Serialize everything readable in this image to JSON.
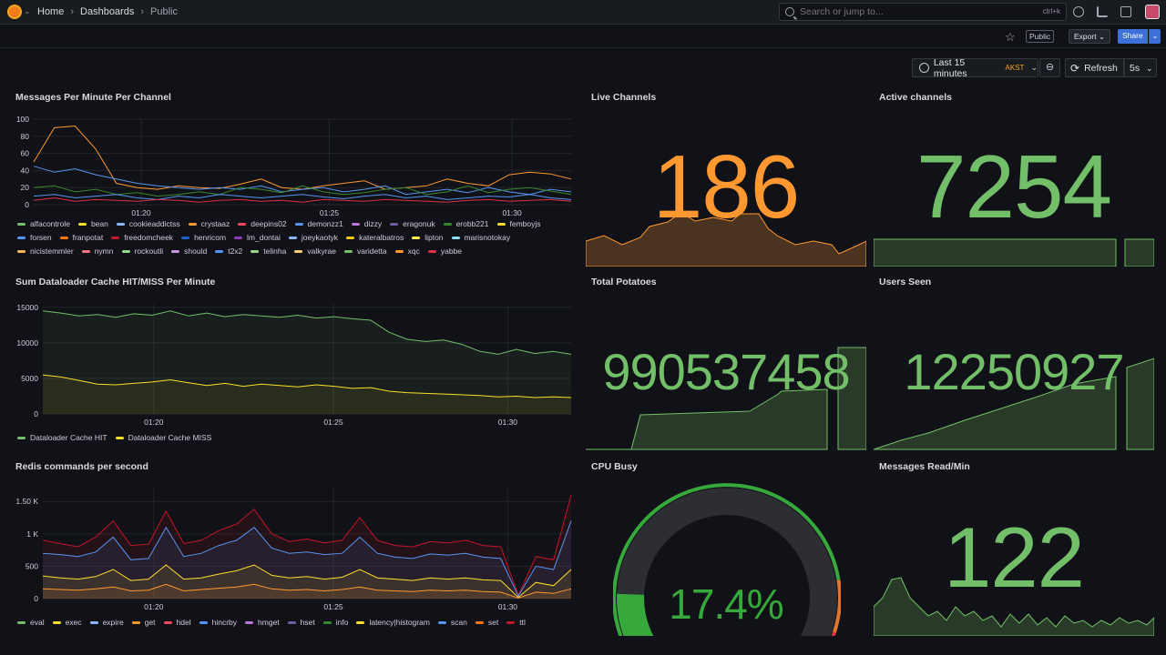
{
  "topbar": {
    "breadcrumbs": [
      "Home",
      "Dashboards",
      "Public"
    ],
    "search_placeholder": "Search or jump to...",
    "search_shortcut": "ctrl+k"
  },
  "toolbar": {
    "public_badge": "Public",
    "export_label": "Export",
    "share_label": "Share"
  },
  "controls": {
    "time_range": "Last 15 minutes",
    "timezone": "AKST",
    "refresh_label": "Refresh",
    "refresh_interval": "5s"
  },
  "colors": {
    "orange": "#ff9830",
    "green": "#73bf69",
    "stat_green_fill": "#2a3a28",
    "stat_orange_fill": "#4a3320"
  },
  "panels": {
    "messages_per_minute": {
      "title": "Messages Per Minute Per Channel",
      "legend": [
        {
          "name": "alfacontrole",
          "color": "#73bf69"
        },
        {
          "name": "bean",
          "color": "#fade2a"
        },
        {
          "name": "cookieaddictss",
          "color": "#8ab8ff"
        },
        {
          "name": "crystaaz",
          "color": "#ff9830"
        },
        {
          "name": "deepins02",
          "color": "#f2495c"
        },
        {
          "name": "demonzz1",
          "color": "#5794f2"
        },
        {
          "name": "dizzy",
          "color": "#b877d9"
        },
        {
          "name": "eragonuk",
          "color": "#705da0"
        },
        {
          "name": "erobb221",
          "color": "#37872d"
        },
        {
          "name": "femboyjs",
          "color": "#fade2a"
        },
        {
          "name": "forsen",
          "color": "#5794f2"
        },
        {
          "name": "franpotat",
          "color": "#ff780a"
        },
        {
          "name": "freedomcheek",
          "color": "#c4162a"
        },
        {
          "name": "henricom",
          "color": "#1f60c4"
        },
        {
          "name": "lm_dontai",
          "color": "#8f3bb8"
        },
        {
          "name": "joeykaotyk",
          "color": "#8ab8ff"
        },
        {
          "name": "kateralbatros",
          "color": "#f2cc0c"
        },
        {
          "name": "lipton",
          "color": "#ffee52"
        },
        {
          "name": "marisnotokay",
          "color": "#8ae1fc"
        },
        {
          "name": "nicistemmler",
          "color": "#ffb357"
        },
        {
          "name": "nymn",
          "color": "#ff7383"
        },
        {
          "name": "rockoutli",
          "color": "#96d98d"
        },
        {
          "name": "should",
          "color": "#ca95e5"
        },
        {
          "name": "t2x2",
          "color": "#5794f2"
        },
        {
          "name": "telinha",
          "color": "#96d98d"
        },
        {
          "name": "valkyrae",
          "color": "#ffcb7d"
        },
        {
          "name": "varidetta",
          "color": "#73bf69"
        },
        {
          "name": "xqc",
          "color": "#ff9830"
        },
        {
          "name": "yabbe",
          "color": "#e02f44"
        }
      ]
    },
    "cache": {
      "title": "Sum Dataloader Cache HIT/MISS Per Minute",
      "legend": [
        {
          "name": "Dataloader Cache HIT",
          "color": "#73bf69"
        },
        {
          "name": "Dataloader Cache MISS",
          "color": "#fade2a"
        }
      ]
    },
    "redis": {
      "title": "Redis commands per second",
      "legend": [
        {
          "name": "eval",
          "color": "#73bf69"
        },
        {
          "name": "exec",
          "color": "#fade2a"
        },
        {
          "name": "expire",
          "color": "#8ab8ff"
        },
        {
          "name": "get",
          "color": "#ff9830"
        },
        {
          "name": "hdel",
          "color": "#f2495c"
        },
        {
          "name": "hincrby",
          "color": "#5794f2"
        },
        {
          "name": "hmget",
          "color": "#b877d9"
        },
        {
          "name": "hset",
          "color": "#705da0"
        },
        {
          "name": "info",
          "color": "#37872d"
        },
        {
          "name": "latency|histogram",
          "color": "#fade2a"
        },
        {
          "name": "scan",
          "color": "#5794f2"
        },
        {
          "name": "set",
          "color": "#ff780a"
        },
        {
          "name": "ttl",
          "color": "#c4162a"
        }
      ]
    },
    "live_channels": {
      "title": "Live Channels",
      "value": "186"
    },
    "active_channels": {
      "title": "Active channels",
      "value": "7254"
    },
    "total_potatoes": {
      "title": "Total Potatoes",
      "value": "990537458"
    },
    "users_seen": {
      "title": "Users Seen",
      "value": "12250927"
    },
    "cpu_busy": {
      "title": "CPU Busy",
      "value": "17.4%",
      "fraction": 0.174
    },
    "messages_read": {
      "title": "Messages Read/Min",
      "value": "122"
    }
  },
  "chart_data": [
    {
      "type": "line",
      "title": "Messages Per Minute Per Channel",
      "x_ticks": [
        "01:20",
        "01:25",
        "01:30"
      ],
      "y_ticks": [
        "0",
        "20",
        "40",
        "60",
        "80",
        "100"
      ],
      "ylim": [
        0,
        100
      ],
      "series": [
        {
          "name": "crystaaz",
          "values": [
            50,
            90,
            92,
            65,
            25,
            20,
            18,
            22,
            20,
            19,
            24,
            30,
            20,
            18,
            22,
            25,
            28,
            18,
            20,
            22,
            30,
            25,
            22,
            35,
            38,
            36,
            30
          ]
        },
        {
          "name": "demonzz1",
          "values": [
            45,
            38,
            42,
            35,
            30,
            25,
            22,
            20,
            18,
            20,
            18,
            22,
            15,
            18,
            20,
            15,
            18,
            22,
            12,
            15,
            18,
            14,
            20,
            15,
            12,
            18,
            15
          ]
        },
        {
          "name": "erobb221",
          "values": [
            20,
            22,
            15,
            18,
            12,
            14,
            10,
            12,
            15,
            12,
            20,
            18,
            14,
            22,
            15,
            12,
            14,
            18,
            20,
            12,
            15,
            22,
            14,
            18,
            20,
            16,
            12
          ]
        },
        {
          "name": "forsen",
          "values": [
            10,
            12,
            8,
            10,
            12,
            8,
            6,
            10,
            8,
            12,
            10,
            8,
            10,
            12,
            9,
            7,
            10,
            12,
            8,
            10,
            6,
            8,
            10,
            9,
            12,
            8,
            6
          ]
        },
        {
          "name": "yabbe",
          "values": [
            5,
            8,
            4,
            6,
            5,
            4,
            6,
            5,
            3,
            5,
            6,
            4,
            5,
            3,
            6,
            5,
            4,
            6,
            5,
            4,
            3,
            5,
            6,
            4,
            5,
            6,
            4
          ]
        }
      ]
    },
    {
      "type": "line",
      "title": "Sum Dataloader Cache HIT/MISS Per Minute",
      "x_ticks": [
        "01:20",
        "01:25",
        "01:30"
      ],
      "y_ticks": [
        "0",
        "5000",
        "10000",
        "15000"
      ],
      "ylim": [
        0,
        15500
      ],
      "series": [
        {
          "name": "Dataloader Cache HIT",
          "values": [
            14500,
            14200,
            13800,
            14000,
            13600,
            14100,
            13900,
            14500,
            13800,
            14200,
            13700,
            14000,
            13800,
            13600,
            13900,
            13500,
            13700,
            13400,
            13200,
            11500,
            10500,
            10200,
            10400,
            9800,
            8800,
            8400,
            9100,
            8500,
            8800,
            8400
          ]
        },
        {
          "name": "Dataloader Cache MISS",
          "values": [
            5500,
            5200,
            4700,
            4200,
            4100,
            4300,
            4500,
            4800,
            4400,
            4000,
            4300,
            3900,
            4200,
            4000,
            3800,
            4100,
            3900,
            3600,
            3700,
            3200,
            3000,
            2900,
            2800,
            2700,
            2600,
            2400,
            2500,
            2300,
            2400,
            2300
          ]
        }
      ]
    },
    {
      "type": "area",
      "title": "Redis commands per second",
      "x_ticks": [
        "01:20",
        "01:25",
        "01:30"
      ],
      "y_ticks": [
        "0",
        "500",
        "1 K",
        "1.50 K"
      ],
      "ylim": [
        0,
        1700
      ],
      "series": [
        {
          "name": "ttl",
          "values": [
            900,
            850,
            800,
            950,
            1200,
            820,
            840,
            1350,
            850,
            900,
            1050,
            1150,
            1380,
            1000,
            880,
            920,
            860,
            900,
            1250,
            900,
            820,
            800,
            880,
            860,
            900,
            820,
            800,
            50,
            650,
            600,
            1600
          ]
        },
        {
          "name": "hincrby",
          "values": [
            700,
            680,
            650,
            720,
            950,
            600,
            620,
            1100,
            650,
            700,
            820,
            900,
            1100,
            780,
            700,
            720,
            680,
            700,
            950,
            700,
            640,
            620,
            690,
            670,
            700,
            640,
            620,
            40,
            500,
            450,
            1200
          ]
        },
        {
          "name": "exec",
          "values": [
            350,
            320,
            300,
            340,
            450,
            280,
            300,
            520,
            300,
            320,
            380,
            430,
            520,
            360,
            320,
            340,
            300,
            330,
            450,
            320,
            300,
            280,
            320,
            300,
            320,
            290,
            280,
            20,
            250,
            200,
            450
          ]
        },
        {
          "name": "get",
          "values": [
            150,
            140,
            130,
            150,
            180,
            120,
            130,
            220,
            120,
            140,
            160,
            180,
            220,
            150,
            130,
            140,
            120,
            140,
            180,
            130,
            120,
            110,
            130,
            120,
            130,
            110,
            100,
            10,
            100,
            80,
            150
          ]
        }
      ]
    }
  ]
}
